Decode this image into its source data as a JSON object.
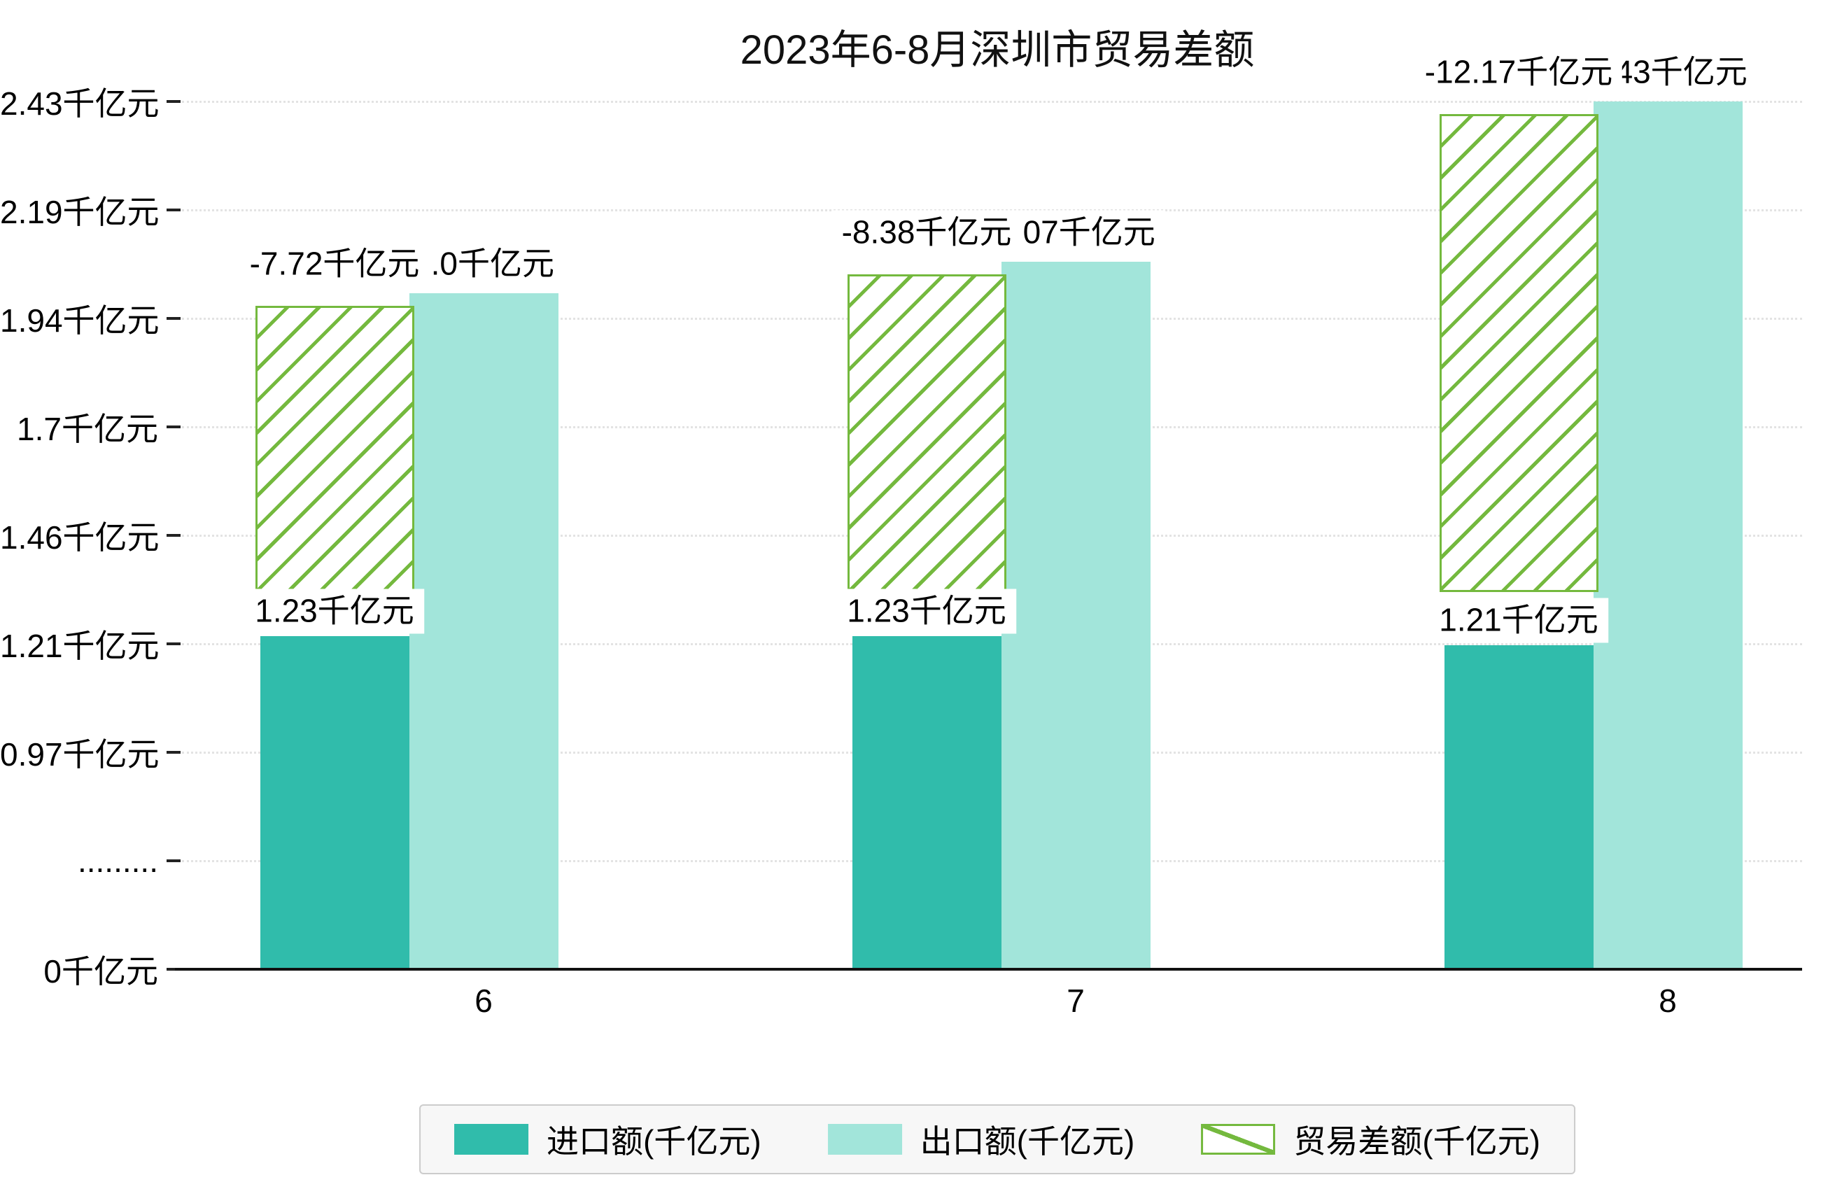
{
  "title": "2023年6-8月深圳市贸易差额",
  "colors": {
    "import": "#30bcab",
    "export": "#a2e5da",
    "balance": "#74b93e",
    "grid": "#e3e3e3",
    "axis": "#111111",
    "text": "#000000",
    "label_bg": "#ffffff",
    "legend_bg": "#f7f7f7",
    "legend_border": "#cccccc"
  },
  "legend": {
    "items": [
      {
        "label": "进口额(千亿元)",
        "swatch": "import"
      },
      {
        "label": "出口额(千亿元)",
        "swatch": "export"
      },
      {
        "label": "贸易差额(千亿元)",
        "swatch": "balance"
      }
    ]
  },
  "chart_data": {
    "type": "bar",
    "title": "2023年6-8月深圳市贸易差额",
    "categories": [
      "6",
      "7",
      "8"
    ],
    "series": [
      {
        "name": "进口额(千亿元)",
        "role": "import",
        "values": [
          1.23,
          1.23,
          1.21
        ],
        "value_labels": [
          "1.23千亿元",
          "1.23千亿元",
          "1.21千亿元"
        ]
      },
      {
        "name": "出口额(千亿元)",
        "role": "export",
        "values": [
          2.0,
          2.07,
          2.43
        ],
        "value_labels": [
          "2.0千亿元",
          "2.07千亿元",
          "2.43千亿元"
        ]
      },
      {
        "name": "贸易差额(千亿元)",
        "role": "balance",
        "values": [
          -7.72,
          -8.38,
          -12.17
        ],
        "value_labels": [
          "-7.72千亿元",
          "-8.38千亿元",
          "-12.17千亿元"
        ]
      }
    ],
    "unit": "千亿元",
    "y_axis": {
      "tick_labels": [
        "0千亿元",
        ".........",
        "0.97千亿元",
        "1.21千亿元",
        "1.46千亿元",
        "1.7千亿元",
        "1.94千亿元",
        "2.19千亿元",
        "2.43千亿元"
      ],
      "tick_values": [
        0,
        null,
        0.97,
        1.21,
        1.46,
        1.7,
        1.94,
        2.19,
        2.43
      ],
      "axis_break": true,
      "axis_break_between": [
        0,
        0.97
      ]
    },
    "ylim": [
      0,
      2.43
    ],
    "grid": "dotted-horizontal",
    "legend_position": "bottom"
  }
}
